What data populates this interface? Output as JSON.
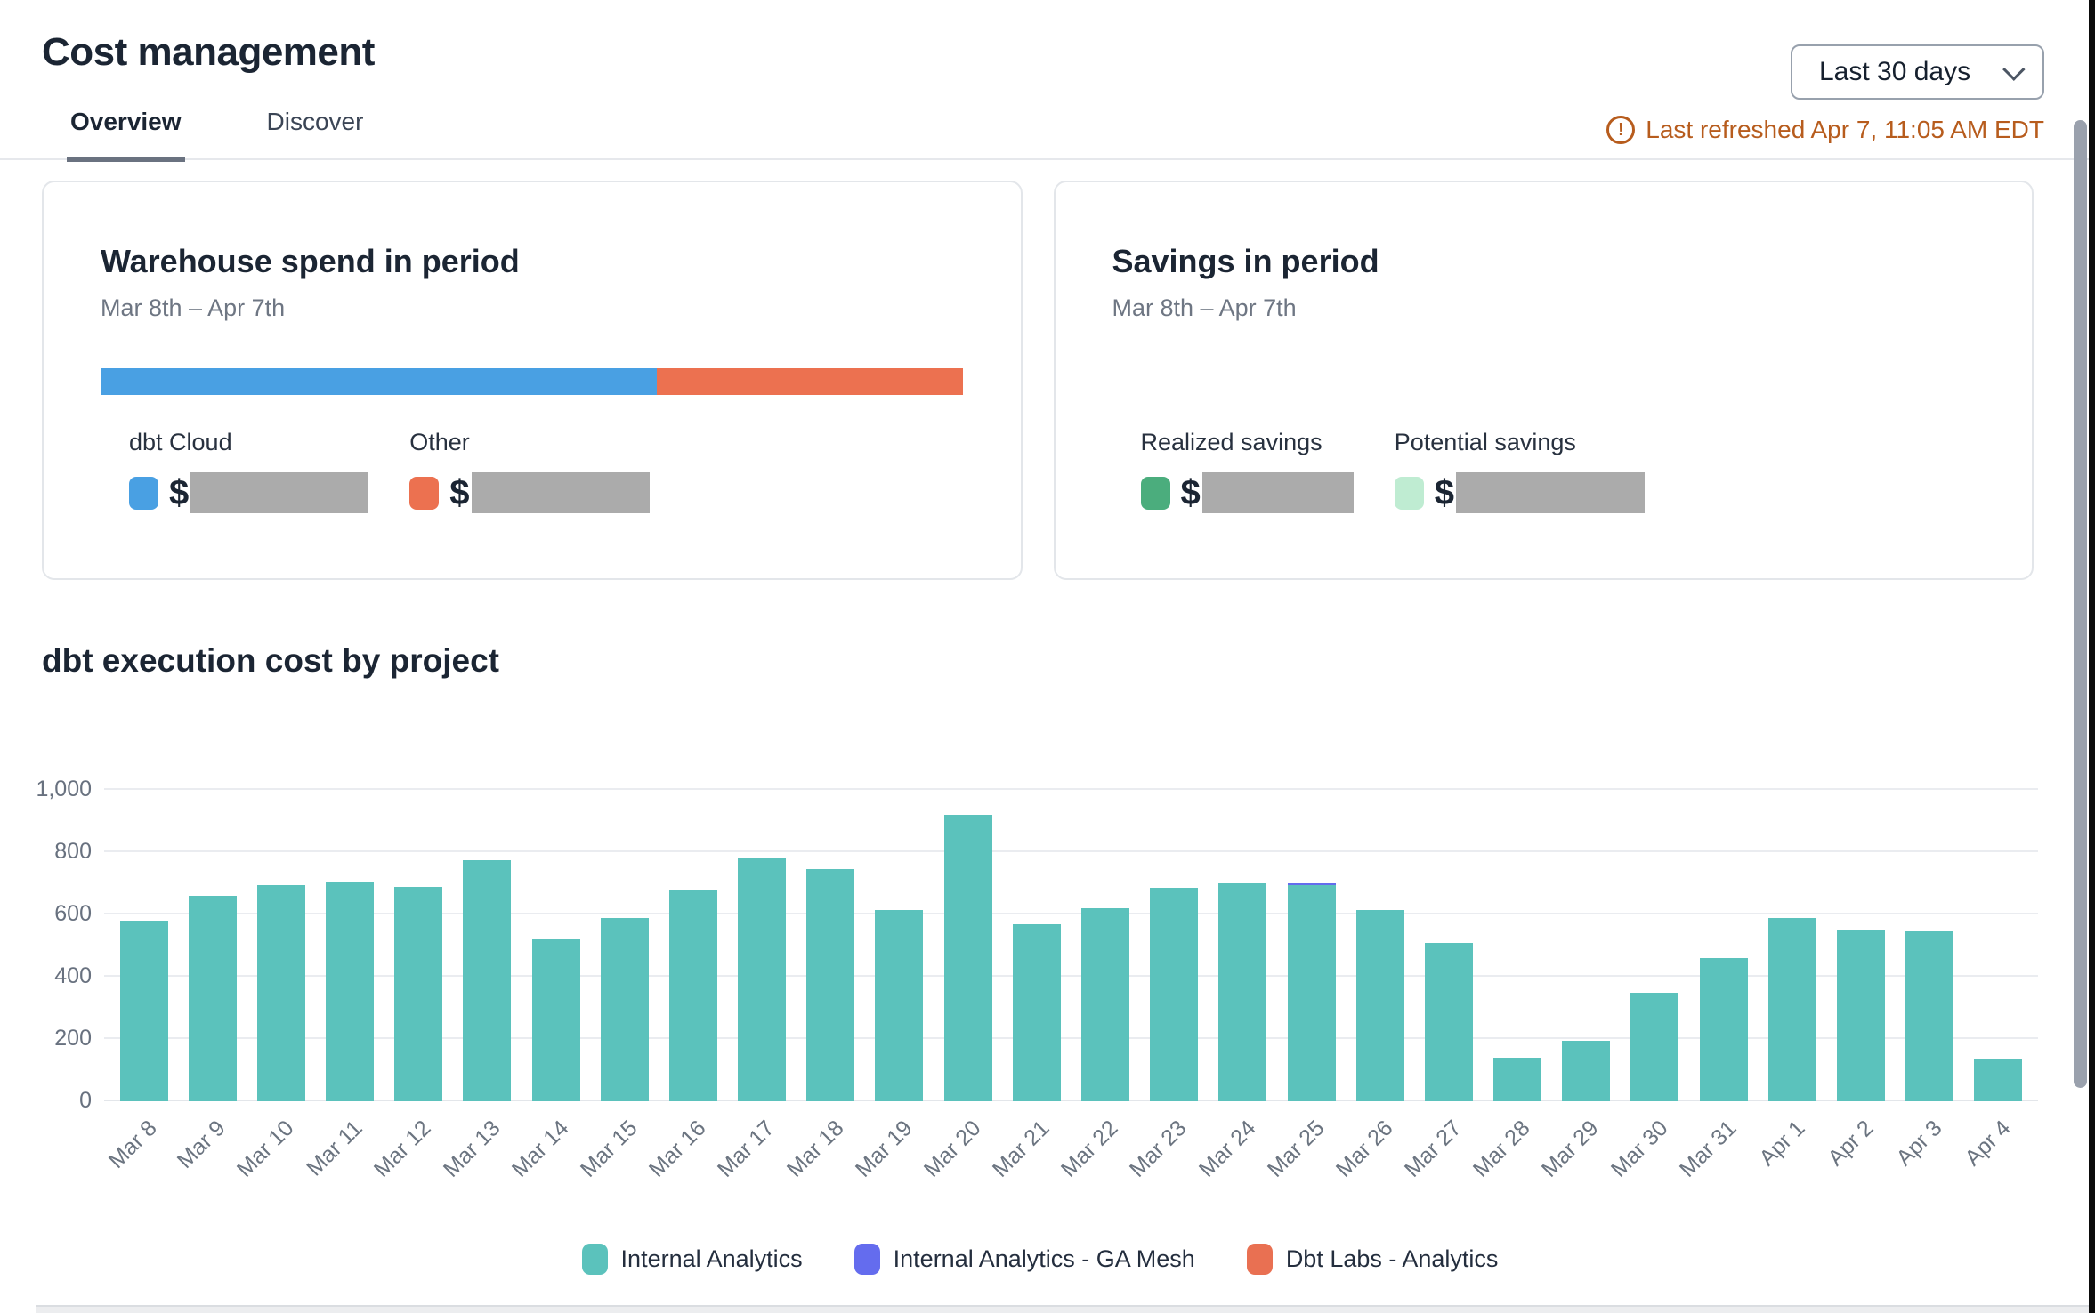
{
  "header": {
    "title": "Cost management",
    "tabs": [
      {
        "label": "Overview",
        "active": true
      },
      {
        "label": "Discover",
        "active": false
      }
    ],
    "range_selector": {
      "value": "Last 30 days",
      "icon": "chevron-down-icon"
    },
    "refresh": {
      "icon": "alert-circle-icon",
      "glyph": "!",
      "text": "Last refreshed Apr 7, 11:05 AM EDT",
      "color": "#b75c1d"
    }
  },
  "cards": {
    "warehouse": {
      "title": "Warehouse spend in period",
      "date_range": "Mar 8th – Apr 7th",
      "stacked_bar": {
        "segments": [
          {
            "label": "dbt Cloud",
            "color": "#49a0e3",
            "percent": 64.5
          },
          {
            "label": "Other",
            "color": "#ec7150",
            "percent": 35.5
          }
        ]
      },
      "legend": [
        {
          "label": "dbt Cloud",
          "color": "#49a0e3",
          "currency": "$",
          "value_redacted": true
        },
        {
          "label": "Other",
          "color": "#ec7150",
          "currency": "$",
          "value_redacted": true
        }
      ]
    },
    "savings": {
      "title": "Savings in period",
      "date_range": "Mar 8th – Apr 7th",
      "legend": [
        {
          "label": "Realized savings",
          "color": "#4bad7d",
          "currency": "$",
          "value_redacted": true
        },
        {
          "label": "Potential savings",
          "color": "#bfecd2",
          "currency": "$",
          "value_redacted": true
        }
      ]
    }
  },
  "section": {
    "title": "dbt execution cost by project"
  },
  "chart_data": {
    "type": "bar",
    "stacked": true,
    "title": "dbt execution cost by project",
    "xlabel": "",
    "ylabel": "",
    "ylim": [
      0,
      1000
    ],
    "grid": true,
    "legend_position": "bottom",
    "yticks": [
      {
        "value": 0,
        "label": "0"
      },
      {
        "value": 200,
        "label": "200"
      },
      {
        "value": 400,
        "label": "400"
      },
      {
        "value": 600,
        "label": "600"
      },
      {
        "value": 800,
        "label": "800"
      },
      {
        "value": 1000,
        "label": "1,000"
      }
    ],
    "categories": [
      "Mar 8",
      "Mar 9",
      "Mar 10",
      "Mar 11",
      "Mar 12",
      "Mar 13",
      "Mar 14",
      "Mar 15",
      "Mar 16",
      "Mar 17",
      "Mar 18",
      "Mar 19",
      "Mar 20",
      "Mar 21",
      "Mar 22",
      "Mar 23",
      "Mar 24",
      "Mar 25",
      "Mar 26",
      "Mar 27",
      "Mar 28",
      "Mar 29",
      "Mar 30",
      "Mar 31",
      "Apr 1",
      "Apr 2",
      "Apr 3",
      "Apr 4"
    ],
    "series": [
      {
        "name": "Internal Analytics",
        "color": "#5bc2bc",
        "values": [
          580,
          660,
          695,
          705,
          690,
          775,
          520,
          590,
          680,
          780,
          745,
          615,
          920,
          570,
          620,
          685,
          700,
          695,
          615,
          510,
          140,
          195,
          350,
          460,
          590,
          550,
          545,
          135
        ]
      },
      {
        "name": "Internal Analytics - GA Mesh",
        "color": "#646cee",
        "values": [
          0,
          0,
          0,
          0,
          0,
          0,
          0,
          0,
          0,
          0,
          0,
          0,
          0,
          0,
          0,
          0,
          0,
          5,
          0,
          0,
          0,
          0,
          0,
          0,
          0,
          0,
          0,
          0
        ]
      },
      {
        "name": "Dbt Labs - Analytics",
        "color": "#e97052",
        "values": [
          0,
          0,
          0,
          0,
          0,
          0,
          0,
          0,
          0,
          0,
          0,
          0,
          0,
          0,
          0,
          0,
          0,
          0,
          0,
          0,
          0,
          0,
          0,
          0,
          0,
          0,
          0,
          0
        ]
      }
    ]
  },
  "colors": {
    "bar_teal": "#5bc2bc",
    "bar_indigo": "#646cee",
    "bar_orange": "#e97052",
    "spend_blue": "#49a0e3",
    "spend_orange": "#ec7150",
    "realized_green": "#4bad7d",
    "potential_mint": "#bfecd2",
    "redacted_gray": "#ababab",
    "refresh_orange": "#b75c1d"
  }
}
